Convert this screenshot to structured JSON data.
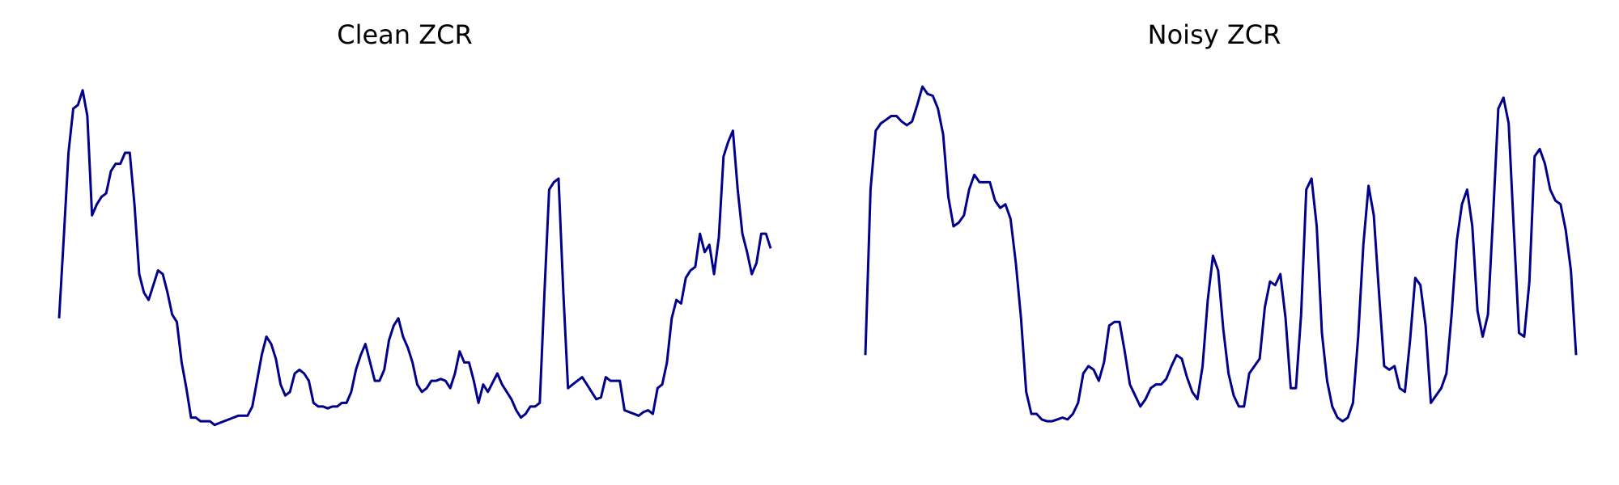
{
  "chart_data": [
    {
      "type": "line",
      "title": "Clean ZCR",
      "xlabel": "",
      "ylabel": "",
      "axes_visible": false,
      "grid": false,
      "color": "#00008b",
      "ylim": [
        0.0,
        1.0
      ],
      "y": [
        0.35,
        0.57,
        0.8,
        0.92,
        0.93,
        0.97,
        0.9,
        0.63,
        0.66,
        0.68,
        0.69,
        0.75,
        0.77,
        0.77,
        0.8,
        0.8,
        0.66,
        0.47,
        0.42,
        0.4,
        0.44,
        0.48,
        0.47,
        0.42,
        0.36,
        0.34,
        0.23,
        0.16,
        0.08,
        0.08,
        0.07,
        0.07,
        0.07,
        0.06,
        0.065,
        0.07,
        0.075,
        0.08,
        0.085,
        0.085,
        0.085,
        0.11,
        0.18,
        0.25,
        0.3,
        0.28,
        0.24,
        0.17,
        0.14,
        0.15,
        0.2,
        0.21,
        0.2,
        0.18,
        0.12,
        0.11,
        0.11,
        0.105,
        0.11,
        0.11,
        0.12,
        0.12,
        0.15,
        0.21,
        0.25,
        0.28,
        0.23,
        0.18,
        0.18,
        0.21,
        0.29,
        0.33,
        0.35,
        0.3,
        0.27,
        0.23,
        0.17,
        0.15,
        0.16,
        0.18,
        0.18,
        0.185,
        0.18,
        0.16,
        0.2,
        0.26,
        0.23,
        0.23,
        0.18,
        0.12,
        0.17,
        0.15,
        0.175,
        0.2,
        0.17,
        0.15,
        0.13,
        0.1,
        0.08,
        0.09,
        0.11,
        0.11,
        0.12,
        0.42,
        0.7,
        0.72,
        0.73,
        0.42,
        0.16,
        0.17,
        0.18,
        0.19,
        0.17,
        0.15,
        0.13,
        0.135,
        0.19,
        0.18,
        0.18,
        0.18,
        0.1,
        0.095,
        0.09,
        0.085,
        0.095,
        0.1,
        0.09,
        0.16,
        0.17,
        0.23,
        0.35,
        0.4,
        0.39,
        0.46,
        0.48,
        0.49,
        0.58,
        0.53,
        0.55,
        0.47,
        0.57,
        0.79,
        0.83,
        0.86,
        0.7,
        0.58,
        0.53,
        0.47,
        0.5,
        0.58,
        0.58,
        0.54
      ]
    },
    {
      "type": "line",
      "title": "Noisy ZCR",
      "xlabel": "",
      "ylabel": "",
      "axes_visible": false,
      "grid": false,
      "color": "#00008b",
      "ylim": [
        0.0,
        1.0
      ],
      "y": [
        0.25,
        0.7,
        0.86,
        0.88,
        0.89,
        0.9,
        0.9,
        0.885,
        0.875,
        0.885,
        0.93,
        0.98,
        0.96,
        0.955,
        0.92,
        0.85,
        0.68,
        0.6,
        0.61,
        0.63,
        0.7,
        0.74,
        0.72,
        0.72,
        0.72,
        0.67,
        0.65,
        0.66,
        0.62,
        0.5,
        0.35,
        0.15,
        0.09,
        0.09,
        0.075,
        0.07,
        0.07,
        0.075,
        0.08,
        0.075,
        0.09,
        0.12,
        0.2,
        0.22,
        0.21,
        0.18,
        0.23,
        0.33,
        0.34,
        0.34,
        0.26,
        0.17,
        0.14,
        0.11,
        0.13,
        0.16,
        0.17,
        0.17,
        0.185,
        0.22,
        0.25,
        0.24,
        0.19,
        0.15,
        0.13,
        0.22,
        0.4,
        0.52,
        0.48,
        0.32,
        0.2,
        0.14,
        0.11,
        0.11,
        0.2,
        0.22,
        0.24,
        0.38,
        0.45,
        0.44,
        0.47,
        0.35,
        0.16,
        0.16,
        0.36,
        0.7,
        0.73,
        0.6,
        0.31,
        0.18,
        0.11,
        0.08,
        0.07,
        0.08,
        0.12,
        0.3,
        0.55,
        0.71,
        0.63,
        0.42,
        0.22,
        0.21,
        0.22,
        0.16,
        0.15,
        0.29,
        0.46,
        0.44,
        0.33,
        0.12,
        0.14,
        0.16,
        0.2,
        0.36,
        0.56,
        0.66,
        0.7,
        0.6,
        0.37,
        0.3,
        0.36,
        0.63,
        0.92,
        0.95,
        0.88,
        0.59,
        0.31,
        0.3,
        0.45,
        0.79,
        0.81,
        0.77,
        0.7,
        0.67,
        0.66,
        0.59,
        0.48,
        0.25
      ]
    }
  ]
}
